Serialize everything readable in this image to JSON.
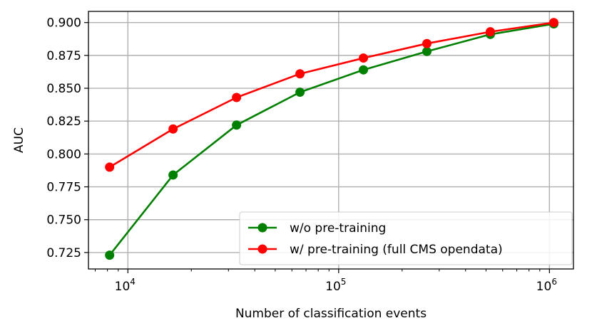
{
  "chart_data": {
    "type": "line",
    "title": "",
    "xlabel": "Number of classification events",
    "ylabel": "AUC",
    "x_scale": "log",
    "grid": true,
    "legend_position": "lower-right",
    "xlim": [
      6500,
      1300000
    ],
    "ylim": [
      0.7125,
      0.9085
    ],
    "y_ticks": [
      0.725,
      0.75,
      0.775,
      0.8,
      0.825,
      0.85,
      0.875,
      0.9
    ],
    "y_tick_labels": [
      "0.725",
      "0.750",
      "0.775",
      "0.800",
      "0.825",
      "0.850",
      "0.875",
      "0.900"
    ],
    "x_major_ticks": [
      {
        "value": 10000,
        "base": "10",
        "exp": "4"
      },
      {
        "value": 100000,
        "base": "10",
        "exp": "5"
      },
      {
        "value": 1000000,
        "base": "10",
        "exp": "6"
      }
    ],
    "x": [
      8192,
      16384,
      32768,
      65536,
      131072,
      262144,
      524288,
      1048576
    ],
    "series": [
      {
        "name": "w/o pre-training",
        "color": "#008000",
        "values": [
          0.723,
          0.784,
          0.822,
          0.847,
          0.864,
          0.878,
          0.891,
          0.899
        ]
      },
      {
        "name": "w/ pre-training (full CMS opendata)",
        "color": "#ff0000",
        "values": [
          0.79,
          0.819,
          0.843,
          0.861,
          0.873,
          0.884,
          0.893,
          0.9
        ]
      }
    ],
    "grid_color": "#b0b0b0",
    "axis_color": "#000000"
  }
}
